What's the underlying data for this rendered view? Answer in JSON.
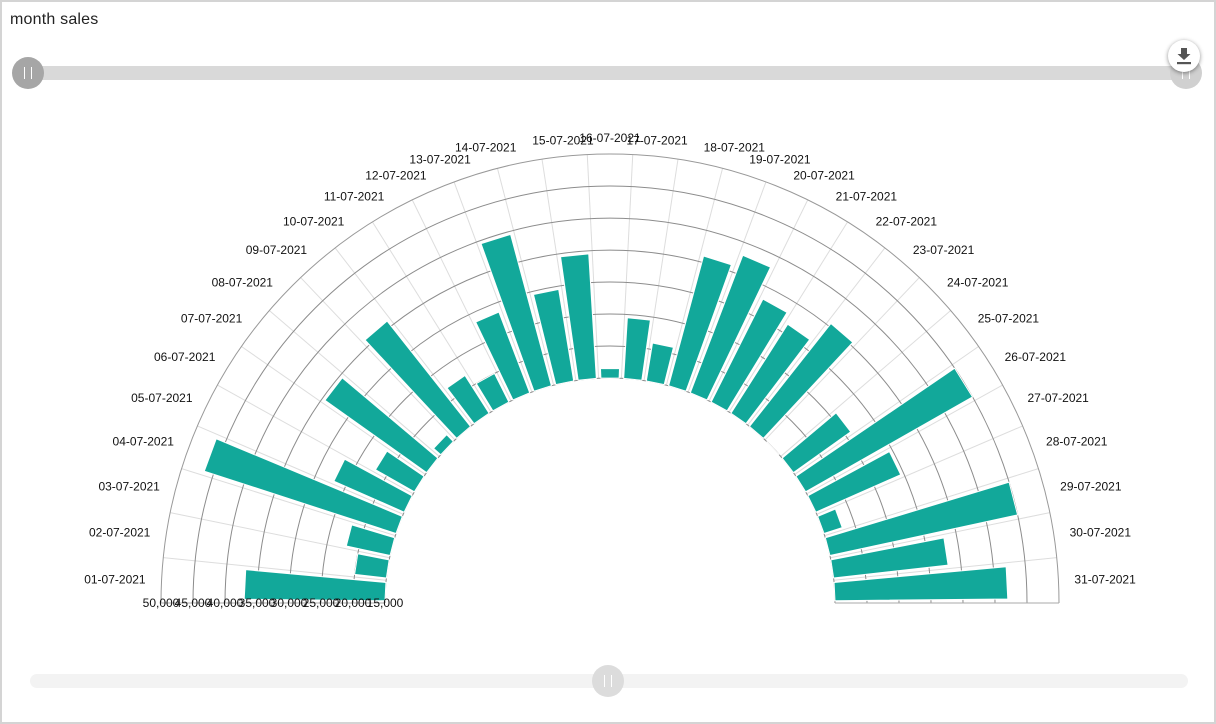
{
  "title": "month sales",
  "chart_data": {
    "type": "bar",
    "layout": "polar semicircle (left-to-right arc)",
    "title": "month sales",
    "categories": [
      "01-07-2021",
      "02-07-2021",
      "03-07-2021",
      "04-07-2021",
      "05-07-2021",
      "06-07-2021",
      "07-07-2021",
      "08-07-2021",
      "09-07-2021",
      "10-07-2021",
      "11-07-2021",
      "12-07-2021",
      "13-07-2021",
      "14-07-2021",
      "15-07-2021",
      "16-07-2021",
      "17-07-2021",
      "18-07-2021",
      "19-07-2021",
      "20-07-2021",
      "21-07-2021",
      "22-07-2021",
      "23-07-2021",
      "24-07-2021",
      "25-07-2021",
      "26-07-2021",
      "27-07-2021",
      "28-07-2021",
      "29-07-2021",
      "30-07-2021",
      "31-07-2021"
    ],
    "series": [
      {
        "values": [
          37000,
          20000,
          22000,
          46500,
          27000,
          22000,
          34500,
          16500,
          36000,
          22000,
          20000,
          28500,
          39500,
          29500,
          34500,
          16500,
          24500,
          21000,
          36000,
          38000,
          33000,
          31500,
          35500,
          7000,
          26000,
          45000,
          29500,
          18000,
          45000,
          33000,
          42000
        ]
      }
    ],
    "radial_axis": {
      "tick_labels": [
        "50,000",
        "45,000",
        "40,000",
        "35,000",
        "30,000",
        "25,000",
        "20,000",
        "15,000"
      ],
      "range": [
        15000,
        50000
      ]
    },
    "grid": true,
    "bar_color": "#12a89a"
  },
  "ui": {
    "download_icon": "download-icon",
    "top_scrollbar": "range-selector",
    "bottom_scrollbar": "horizontal-scrollbar"
  }
}
